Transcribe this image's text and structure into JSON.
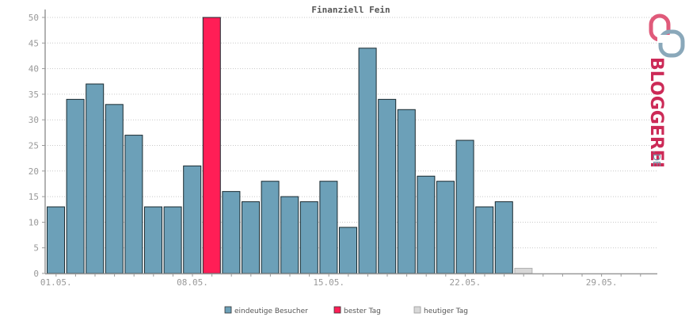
{
  "chart_data": {
    "type": "bar",
    "title": "Finanziell Fein",
    "x_tick_labels": [
      "01.05.",
      "08.05.",
      "15.05.",
      "22.05.",
      "29.05."
    ],
    "y_ticks": [
      0,
      5,
      10,
      15,
      20,
      25,
      30,
      35,
      40,
      45,
      50
    ],
    "ylim": [
      0,
      50
    ],
    "grid": true,
    "legend_position": "bottom-center",
    "days": 31,
    "series": [
      {
        "name": "eindeutige Besucher",
        "color": "#6ca0b8",
        "values": [
          13,
          34,
          37,
          33,
          27,
          13,
          13,
          21,
          null,
          16,
          14,
          18,
          15,
          14,
          18,
          9,
          44,
          34,
          32,
          19,
          18,
          26,
          13,
          14,
          null,
          null,
          null,
          null,
          null,
          null,
          null
        ]
      },
      {
        "name": "bester Tag",
        "color": "#ff1e56",
        "values": [
          null,
          null,
          null,
          null,
          null,
          null,
          null,
          null,
          50,
          null,
          null,
          null,
          null,
          null,
          null,
          null,
          null,
          null,
          null,
          null,
          null,
          null,
          null,
          null,
          null,
          null,
          null,
          null,
          null,
          null,
          null
        ]
      },
      {
        "name": "heutiger Tag",
        "color": "#d8d8d8",
        "values": [
          null,
          null,
          null,
          null,
          null,
          null,
          null,
          null,
          null,
          null,
          null,
          null,
          null,
          null,
          null,
          null,
          null,
          null,
          null,
          null,
          null,
          null,
          null,
          null,
          1,
          null,
          null,
          null,
          null,
          null,
          null
        ]
      }
    ]
  },
  "logo": {
    "brand": "BLOGGEREI",
    "suffix": ".DE",
    "color_main": "#cc2a57",
    "color_accent": "#6f8fa3"
  }
}
